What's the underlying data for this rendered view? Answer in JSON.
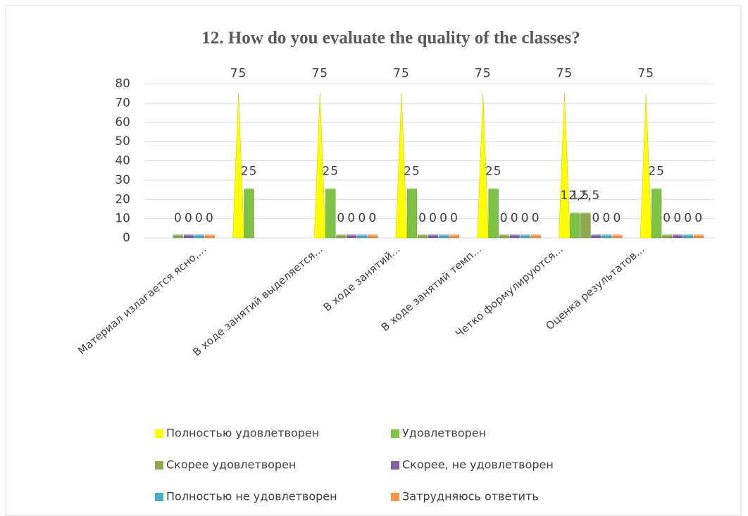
{
  "chart_data": {
    "type": "bar3d",
    "title": "12. How do you evaluate the quality of the classes?",
    "categories": [
      "Материал излагается ясно,...",
      null,
      "В ходе занятий выделяется...",
      "В ходе занятий...",
      "В ходе занятий темп...",
      "Четко формулируются...",
      "Оценка результатов..."
    ],
    "series": [
      {
        "name": "Полностью удовлетворен",
        "color": "#ffff00",
        "shape": "cone",
        "values": [
          null,
          75,
          75,
          75,
          75,
          75,
          75
        ]
      },
      {
        "name": "Удовлетворен",
        "color": "#7dc243",
        "values": [
          null,
          25,
          25,
          25,
          25,
          12.5,
          25
        ],
        "value_labels": [
          null,
          "25",
          "25",
          "25",
          "25",
          "12,5",
          "25"
        ]
      },
      {
        "name": "Скорее удовлетворен",
        "color": "#8faa4a",
        "values": [
          0,
          null,
          0,
          0,
          0,
          12.5,
          0
        ],
        "value_labels": [
          "0",
          null,
          "0",
          "0",
          "0",
          "12,5",
          "0"
        ]
      },
      {
        "name": "Скорее, не удовлетворен",
        "color": "#8064a2",
        "values": [
          0,
          null,
          0,
          0,
          0,
          0,
          0
        ]
      },
      {
        "name": "Полностью не удовлетворен",
        "color": "#4bacc6",
        "values": [
          0,
          null,
          0,
          0,
          0,
          0,
          0
        ]
      },
      {
        "name": "Затрудняюсь ответить",
        "color": "#f79646",
        "values": [
          0,
          null,
          0,
          0,
          0,
          0,
          0
        ]
      }
    ],
    "ylim": [
      0,
      80
    ],
    "yticks": [
      0,
      10,
      20,
      30,
      40,
      50,
      60,
      70,
      80
    ],
    "grid": true,
    "legend": "bottom"
  }
}
